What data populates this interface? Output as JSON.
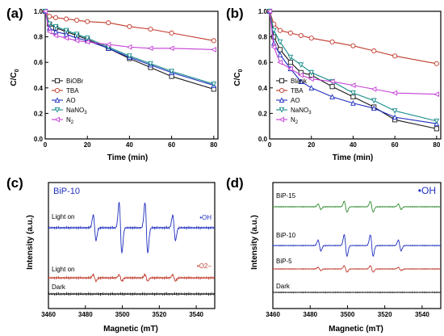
{
  "chart_data": [
    {
      "panel": "(a)",
      "type": "line",
      "xlabel": "Time (min)",
      "ylabel": "C/C0",
      "xlim": [
        0,
        82
      ],
      "ylim": [
        0,
        1.0
      ],
      "xticks": [
        0,
        20,
        40,
        60,
        80
      ],
      "yticks": [
        0.0,
        0.2,
        0.4,
        0.6,
        0.8,
        1.0
      ],
      "legend_position": "bottom-left",
      "x": [
        0,
        2,
        5,
        10,
        15,
        20,
        30,
        40,
        50,
        60,
        80
      ],
      "series": [
        {
          "name": "BiOBr",
          "color": "#1a1a1a",
          "marker": "square",
          "values": [
            1.0,
            0.9,
            0.87,
            0.84,
            0.81,
            0.78,
            0.71,
            0.63,
            0.56,
            0.49,
            0.39
          ]
        },
        {
          "name": "TBA",
          "color": "#c0392b",
          "marker": "circle",
          "values": [
            1.0,
            0.96,
            0.95,
            0.94,
            0.93,
            0.92,
            0.91,
            0.88,
            0.86,
            0.83,
            0.77
          ]
        },
        {
          "name": "AO",
          "color": "#1f2fbf",
          "marker": "triangle",
          "values": [
            1.0,
            0.87,
            0.84,
            0.82,
            0.79,
            0.77,
            0.71,
            0.64,
            0.58,
            0.52,
            0.42
          ]
        },
        {
          "name": "NaNO3",
          "color": "#138a8a",
          "marker": "triangle-down",
          "values": [
            1.0,
            0.9,
            0.88,
            0.85,
            0.82,
            0.79,
            0.72,
            0.65,
            0.59,
            0.53,
            0.43
          ]
        },
        {
          "name": "N2",
          "color": "#c43fd6",
          "marker": "triangle-left",
          "values": [
            1.0,
            0.84,
            0.81,
            0.79,
            0.77,
            0.76,
            0.74,
            0.72,
            0.71,
            0.71,
            0.7
          ]
        }
      ]
    },
    {
      "panel": "(b)",
      "type": "line",
      "xlabel": "Time (min)",
      "ylabel": "C/C0",
      "xlim": [
        0,
        82
      ],
      "ylim": [
        0,
        1.0
      ],
      "xticks": [
        0,
        20,
        40,
        60,
        80
      ],
      "yticks": [
        0.0,
        0.2,
        0.4,
        0.6,
        0.8,
        1.0
      ],
      "legend_position": "bottom-left",
      "x": [
        0,
        2,
        5,
        10,
        15,
        20,
        30,
        40,
        50,
        60,
        80
      ],
      "series": [
        {
          "name": "Blank",
          "color": "#1a1a1a",
          "marker": "square",
          "values": [
            1.0,
            0.8,
            0.7,
            0.6,
            0.52,
            0.5,
            0.41,
            0.33,
            0.25,
            0.15,
            0.08
          ]
        },
        {
          "name": "TBA",
          "color": "#c0392b",
          "marker": "circle",
          "values": [
            1.0,
            0.9,
            0.85,
            0.83,
            0.81,
            0.79,
            0.76,
            0.73,
            0.69,
            0.65,
            0.59
          ]
        },
        {
          "name": "AO",
          "color": "#1f2fbf",
          "marker": "triangle",
          "values": [
            1.0,
            0.75,
            0.66,
            0.55,
            0.45,
            0.4,
            0.33,
            0.28,
            0.24,
            0.17,
            0.12
          ]
        },
        {
          "name": "NaNO3",
          "color": "#138a8a",
          "marker": "triangle-down",
          "values": [
            1.0,
            0.85,
            0.76,
            0.64,
            0.58,
            0.52,
            0.45,
            0.36,
            0.3,
            0.22,
            0.14
          ]
        },
        {
          "name": "N2",
          "color": "#c43fd6",
          "marker": "triangle-left",
          "values": [
            1.0,
            0.72,
            0.6,
            0.55,
            0.5,
            0.47,
            0.45,
            0.42,
            0.39,
            0.36,
            0.35
          ]
        }
      ]
    },
    {
      "panel": "(c)",
      "type": "line",
      "title": "BiP-10",
      "xlabel": "Magnetic (mT)",
      "ylabel": "Intensity (a.u.)",
      "xlim": [
        3460,
        3550
      ],
      "xticks": [
        3460,
        3480,
        3500,
        3520,
        3540
      ],
      "peaks_mT": [
        3485,
        3499,
        3513,
        3528
      ],
      "traces": [
        {
          "name": "Light on",
          "tag": "•OH",
          "color": "#1f2fbf",
          "amplitudes": [
            1,
            2,
            2,
            1
          ]
        },
        {
          "name": "Light on",
          "tag": "•O2−",
          "color": "#c0392b",
          "amplitudes": [
            0.25,
            0.25,
            0.25,
            0.25
          ]
        },
        {
          "name": "Dark",
          "tag": "",
          "color": "#111111",
          "amplitudes": [
            0,
            0,
            0,
            0
          ]
        }
      ]
    },
    {
      "panel": "(d)",
      "type": "line",
      "title": "•OH",
      "xlabel": "Magnetic (mT)",
      "ylabel": "Intensity (a.u.)",
      "xlim": [
        3460,
        3550
      ],
      "xticks": [
        3460,
        3480,
        3500,
        3520,
        3540
      ],
      "peaks_mT": [
        3485,
        3499,
        3513,
        3528
      ],
      "traces": [
        {
          "name": "BiP-15",
          "color": "#2e8b2e",
          "amplitudes": [
            0.5,
            1,
            1,
            0.5
          ]
        },
        {
          "name": "BiP-10",
          "color": "#1f2fbf",
          "amplitudes": [
            1,
            2,
            2,
            1
          ]
        },
        {
          "name": "BiP-5",
          "color": "#c0392b",
          "amplitudes": [
            0.3,
            0.6,
            0.6,
            0.3
          ]
        },
        {
          "name": "Dark",
          "color": "#111111",
          "amplitudes": [
            0,
            0,
            0,
            0
          ]
        }
      ]
    }
  ],
  "panel_labels": [
    "(a)",
    "(b)",
    "(c)",
    "(d)"
  ],
  "axis_labels": {
    "time": "Time (min)",
    "conc_main": "C/C",
    "conc_sub": "0",
    "magnetic": "Magnetic (mT)",
    "intensity": "Intensity (a.u.)"
  }
}
